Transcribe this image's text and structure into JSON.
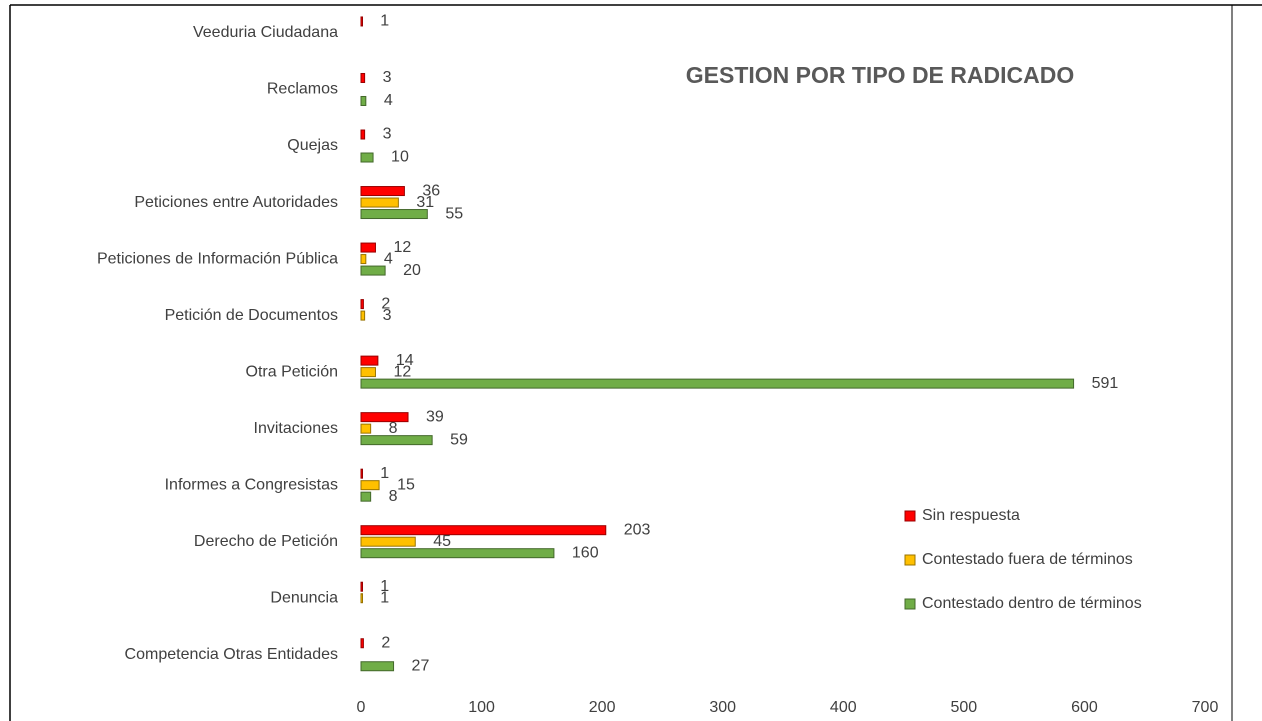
{
  "chart_data": {
    "type": "bar",
    "orientation": "horizontal",
    "title": "GESTION POR TIPO DE RADICADO",
    "categories": [
      "Competencia Otras Entidades",
      "Denuncia",
      "Derecho de Petición",
      "Informes a Congresistas",
      "Invitaciones",
      "Otra Petición",
      "Petición de Documentos",
      "Peticiones de Información Pública",
      "Peticiones entre Autoridades",
      "Quejas",
      "Reclamos",
      "Veeduria Ciudadana"
    ],
    "series": [
      {
        "name": "Sin respuesta",
        "color": "#ff0000",
        "values": [
          2,
          1,
          203,
          1,
          39,
          14,
          2,
          12,
          36,
          3,
          3,
          1
        ]
      },
      {
        "name": "Contestado fuera de términos",
        "color": "#ffc000",
        "values": [
          null,
          1,
          45,
          15,
          8,
          12,
          3,
          4,
          31,
          null,
          null,
          null
        ]
      },
      {
        "name": "Contestado dentro de términos",
        "color": "#70ad47",
        "values": [
          27,
          null,
          160,
          8,
          59,
          591,
          null,
          20,
          55,
          10,
          4,
          null
        ]
      }
    ],
    "xlim": [
      0,
      700
    ],
    "xticks": [
      0,
      100,
      200,
      300,
      400,
      500,
      600,
      700
    ],
    "legend": "right"
  }
}
